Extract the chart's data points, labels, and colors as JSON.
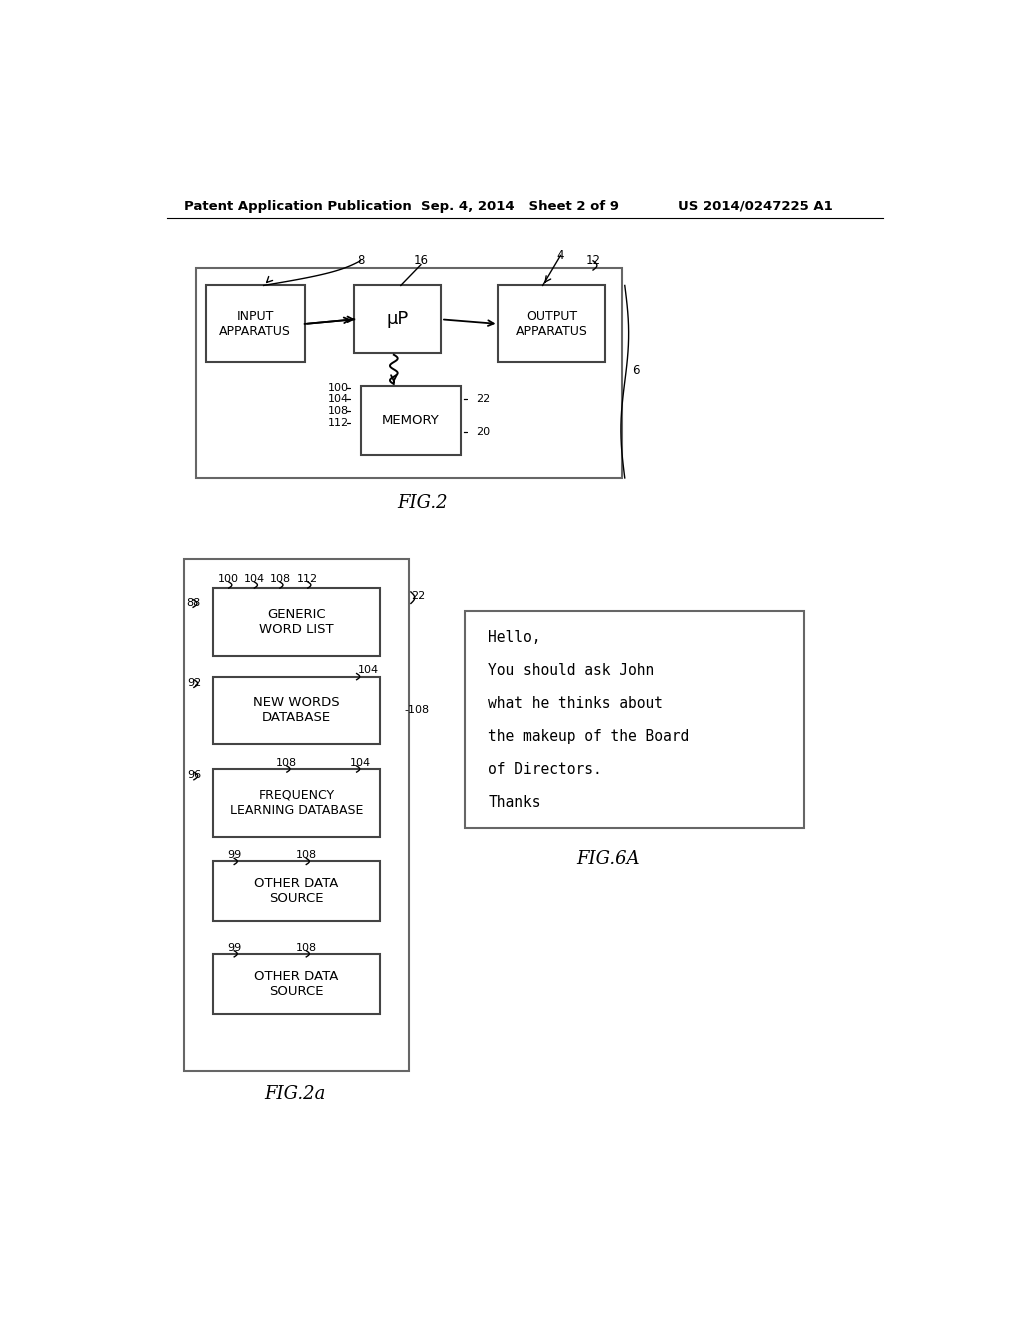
{
  "bg_color": "#ffffff",
  "header_left": "Patent Application Publication",
  "header_mid": "Sep. 4, 2014   Sheet 2 of 9",
  "header_right": "US 2014/0247225 A1",
  "fig2_caption": "FIG.2",
  "fig2a_caption": "FIG.2a",
  "fig6a_caption": "FIG.6A",
  "fig6a_text": [
    "Hello,",
    "You should ask John",
    "what he thinks about",
    "the makeup of the Board",
    "of Directors.",
    "Thanks"
  ]
}
